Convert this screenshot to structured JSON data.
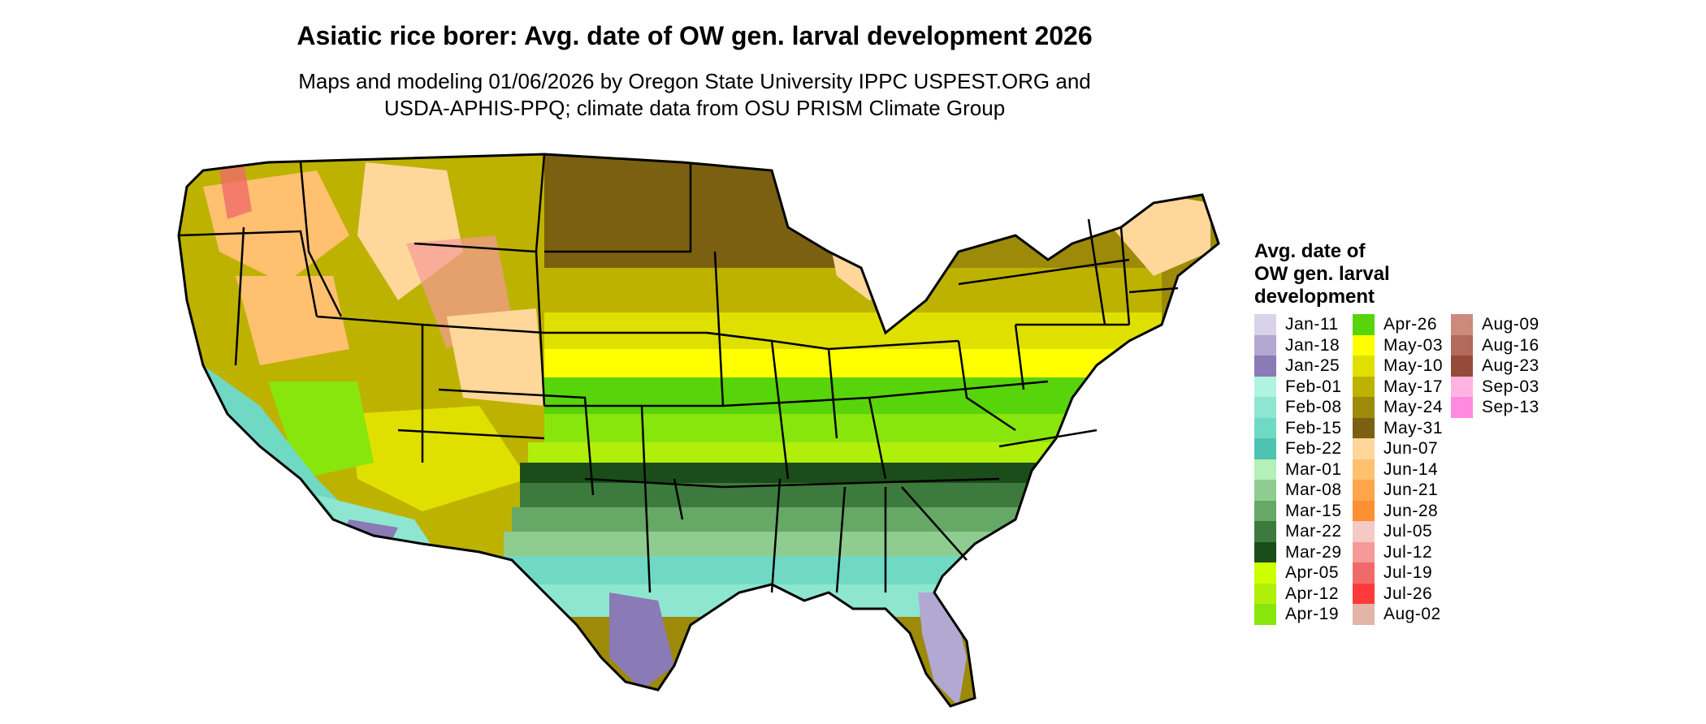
{
  "title": "Asiatic rice borer: Avg. date of OW gen. larval development 2026",
  "subtitle_lines": [
    "Maps and modeling 01/06/2026 by Oregon State University IPPC USPEST.ORG and",
    "USDA-APHIS-PPQ; climate data from OSU PRISM Climate Group"
  ],
  "legend": {
    "title_lines": [
      "Avg. date of",
      "OW gen. larval",
      "development"
    ],
    "items": [
      {
        "label": "Jan-11",
        "color": "#d9d3ea"
      },
      {
        "label": "Jan-18",
        "color": "#b3a8d2"
      },
      {
        "label": "Jan-25",
        "color": "#8a7ab6"
      },
      {
        "label": "Feb-01",
        "color": "#aff4e0"
      },
      {
        "label": "Feb-08",
        "color": "#8fe6d0"
      },
      {
        "label": "Feb-15",
        "color": "#70d9c4"
      },
      {
        "label": "Feb-22",
        "color": "#4fc3b2"
      },
      {
        "label": "Mar-01",
        "color": "#b3f1b8"
      },
      {
        "label": "Mar-08",
        "color": "#8fcc8f"
      },
      {
        "label": "Mar-15",
        "color": "#66a866"
      },
      {
        "label": "Mar-22",
        "color": "#3d7a3d"
      },
      {
        "label": "Mar-29",
        "color": "#1a4d1a"
      },
      {
        "label": "Apr-05",
        "color": "#ccff00"
      },
      {
        "label": "Apr-12",
        "color": "#b0ef0a"
      },
      {
        "label": "Apr-19",
        "color": "#88e60c"
      },
      {
        "label": "Apr-26",
        "color": "#58d40a"
      },
      {
        "label": "May-03",
        "color": "#ffff00"
      },
      {
        "label": "May-10",
        "color": "#e0e000"
      },
      {
        "label": "May-17",
        "color": "#bdb200"
      },
      {
        "label": "May-24",
        "color": "#9c8a08"
      },
      {
        "label": "May-31",
        "color": "#7a6010"
      },
      {
        "label": "Jun-07",
        "color": "#ffd79b"
      },
      {
        "label": "Jun-14",
        "color": "#ffc070"
      },
      {
        "label": "Jun-21",
        "color": "#ffa64d"
      },
      {
        "label": "Jun-28",
        "color": "#ff8f33"
      },
      {
        "label": "Jul-05",
        "color": "#f5c9c6"
      },
      {
        "label": "Jul-12",
        "color": "#f59a98"
      },
      {
        "label": "Jul-19",
        "color": "#f06a6a"
      },
      {
        "label": "Jul-26",
        "color": "#ff3a3a"
      },
      {
        "label": "Aug-02",
        "color": "#e2b5a8"
      },
      {
        "label": "Aug-09",
        "color": "#cc8a7a"
      },
      {
        "label": "Aug-16",
        "color": "#b36a5a"
      },
      {
        "label": "Aug-23",
        "color": "#954a3a"
      },
      {
        "label": "Sep-03",
        "color": "#ffb3e0"
      },
      {
        "label": "Sep-13",
        "color": "#ff8ade"
      }
    ]
  }
}
